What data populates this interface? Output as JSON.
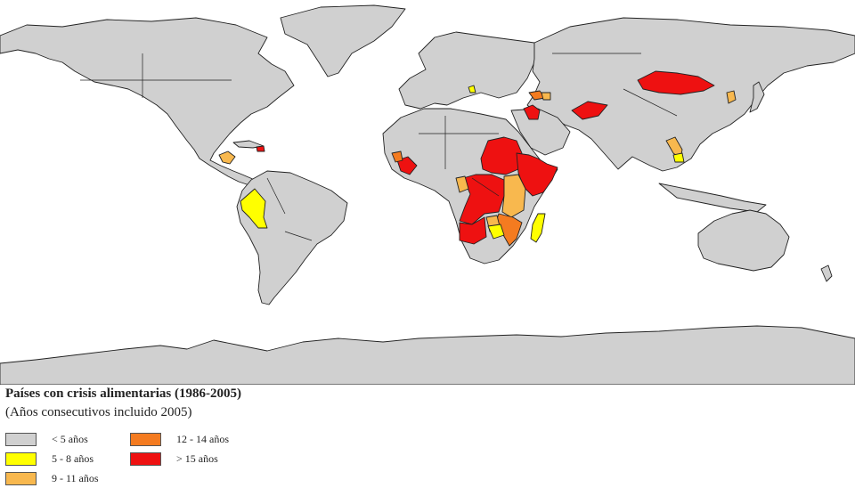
{
  "map": {
    "title": "Países con crisis alimentarias (1986-2005)",
    "subtitle": "(Años consecutivos incluido 2005)",
    "colors": {
      "ocean": "#ffffff",
      "default": "#d0d0d0",
      "yellow": "#ffff00",
      "light_orange": "#f8b84e",
      "orange": "#f47b20",
      "red": "#ee1111"
    },
    "legend": [
      {
        "label": "< 5 años",
        "color": "#d0d0d0"
      },
      {
        "label": "5 - 8 años",
        "color": "#ffff00"
      },
      {
        "label": "9 - 11 años",
        "color": "#f8b84e"
      },
      {
        "label": "12 - 14 años",
        "color": "#f47b20"
      },
      {
        "label": "> 15 años",
        "color": "#ee1111"
      }
    ]
  }
}
